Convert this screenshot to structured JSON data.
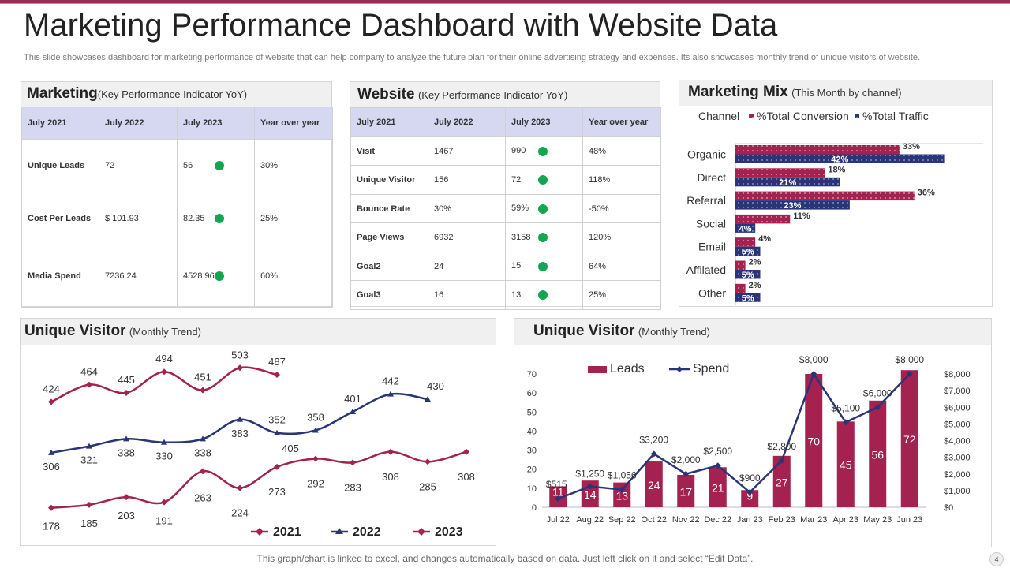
{
  "page": {
    "title": "Marketing Performance Dashboard with Website Data",
    "subtitle": "This slide showcases dashboard for marketing performance of website that can help company to analyze  the future plan for their online advertising strategy and expenses. Its also showcases monthly trend of unique visitors of website.",
    "footer": "This graph/chart is linked to excel,  and changes automatically based on data. Just left click on it and select “Edit Data”.",
    "page_number": "4"
  },
  "colors": {
    "accent": "#9b2a55",
    "crimson": "#a3224f",
    "navy": "#2a3577",
    "green": "#12a652",
    "header_fill": "#d6d8f2"
  },
  "marketing": {
    "title": "Marketing",
    "subtitle": "(Key Performance  Indicator YoY)",
    "headers": [
      "July 2021",
      "July 2022",
      "July 2023",
      "Year over year"
    ],
    "rows": [
      {
        "label": "Unique Leads",
        "v2022": "72",
        "v2023": "56",
        "yoy": "30%"
      },
      {
        "label": "Cost Per Leads",
        "v2022": "$ 101.93",
        "v2023": "82.35",
        "yoy": "25%"
      },
      {
        "label": "Media Spend",
        "v2022": "7236.24",
        "v2023": "4528.96",
        "yoy": "60%"
      }
    ]
  },
  "website": {
    "title": "Website",
    "subtitle": "(Key Performance  Indicator YoY)",
    "headers": [
      "July 2021",
      "July 2022",
      "July 2023",
      "Year over year"
    ],
    "rows": [
      {
        "label": "Visit",
        "v2022": "1467",
        "v2023": "990",
        "yoy": "48%"
      },
      {
        "label": "Unique Visitor",
        "v2022": "156",
        "v2023": "72",
        "yoy": "118%"
      },
      {
        "label": "Bounce Rate",
        "v2022": "30%",
        "v2023": "59%",
        "yoy": "-50%"
      },
      {
        "label": "Page Views",
        "v2022": "6932",
        "v2023": "3158",
        "yoy": "120%"
      },
      {
        "label": "Goal2",
        "v2022": "24",
        "v2023": "15",
        "yoy": "64%"
      },
      {
        "label": "Goal3",
        "v2022": "16",
        "v2023": "13",
        "yoy": "25%"
      }
    ]
  },
  "mix": {
    "title": "Marketing Mix",
    "subtitle": "(This Month  by channel)"
  },
  "visitor_left": {
    "title": "Unique Visitor",
    "subtitle": "(Monthly Trend)"
  },
  "visitor_right": {
    "title": "Unique Visitor",
    "subtitle": "(Monthly Trend)"
  },
  "chart_data": [
    {
      "id": "marketing-mix",
      "type": "bar",
      "orientation": "horizontal",
      "legend_title": "Channel",
      "categories": [
        "Organic",
        "Direct",
        "Referral",
        "Social",
        "Email",
        "Affilated",
        "Other"
      ],
      "series": [
        {
          "name": "%Total Conversion",
          "values": [
            33,
            18,
            36,
            11,
            4,
            2,
            2
          ],
          "labels": [
            "33%",
            "18%",
            "36%",
            "11%",
            "4%",
            "2%",
            "2%"
          ]
        },
        {
          "name": "%Total Traffic",
          "values": [
            42,
            21,
            23,
            4,
            5,
            5,
            5
          ],
          "labels": [
            "42%",
            "21%",
            "23%",
            "4%",
            "5%",
            "5%",
            "5%"
          ]
        }
      ],
      "xlim": [
        0,
        50
      ]
    },
    {
      "id": "unique-visitor-trend",
      "type": "line",
      "series": [
        {
          "name": "2021",
          "values": [
            424,
            464,
            445,
            494,
            451,
            503,
            487
          ]
        },
        {
          "name": "2022",
          "values": [
            306,
            321,
            338,
            330,
            338,
            383,
            352,
            358,
            401,
            442,
            430
          ]
        },
        {
          "name": "2023",
          "values": [
            178,
            185,
            203,
            191,
            263,
            224,
            273,
            292,
            283,
            308,
            285,
            308
          ]
        }
      ],
      "extra_labels": [
        "405"
      ],
      "ylim": [
        150,
        520
      ]
    },
    {
      "id": "leads-spend",
      "type": "bar",
      "categories": [
        "Jul 22",
        "Aug 22",
        "Sep 22",
        "Oct 22",
        "Nov 22",
        "Dec 22",
        "Jan 23",
        "Feb 23",
        "Mar 23",
        "Apr 23",
        "May 23",
        "Jun 23"
      ],
      "series": [
        {
          "name": "Leads",
          "type": "bar",
          "axis": "left",
          "values": [
            11,
            14,
            13,
            24,
            17,
            21,
            9,
            27,
            70,
            45,
            56,
            72
          ]
        },
        {
          "name": "Spend",
          "type": "line",
          "axis": "right",
          "values": [
            515,
            1250,
            1056,
            3200,
            2000,
            2500,
            900,
            2800,
            8000,
            5100,
            6000,
            8000
          ],
          "labels": [
            "$515",
            "$1,250",
            "$1,056",
            "$3,200",
            "$2,000",
            "$2,500",
            "$900",
            "$2,800",
            "$8,000",
            "$5,100",
            "$6,000",
            "$8,000"
          ]
        }
      ],
      "ylim_left": [
        0,
        70
      ],
      "yticks_left": [
        "0",
        "10",
        "20",
        "30",
        "40",
        "50",
        "60",
        "70"
      ],
      "ylim_right": [
        0,
        8000
      ],
      "yticks_right": [
        "$0",
        "$1,000",
        "$2,000",
        "$3,000",
        "$4,000",
        "$5,000",
        "$6,000",
        "$7,000",
        "$8,000"
      ]
    }
  ]
}
